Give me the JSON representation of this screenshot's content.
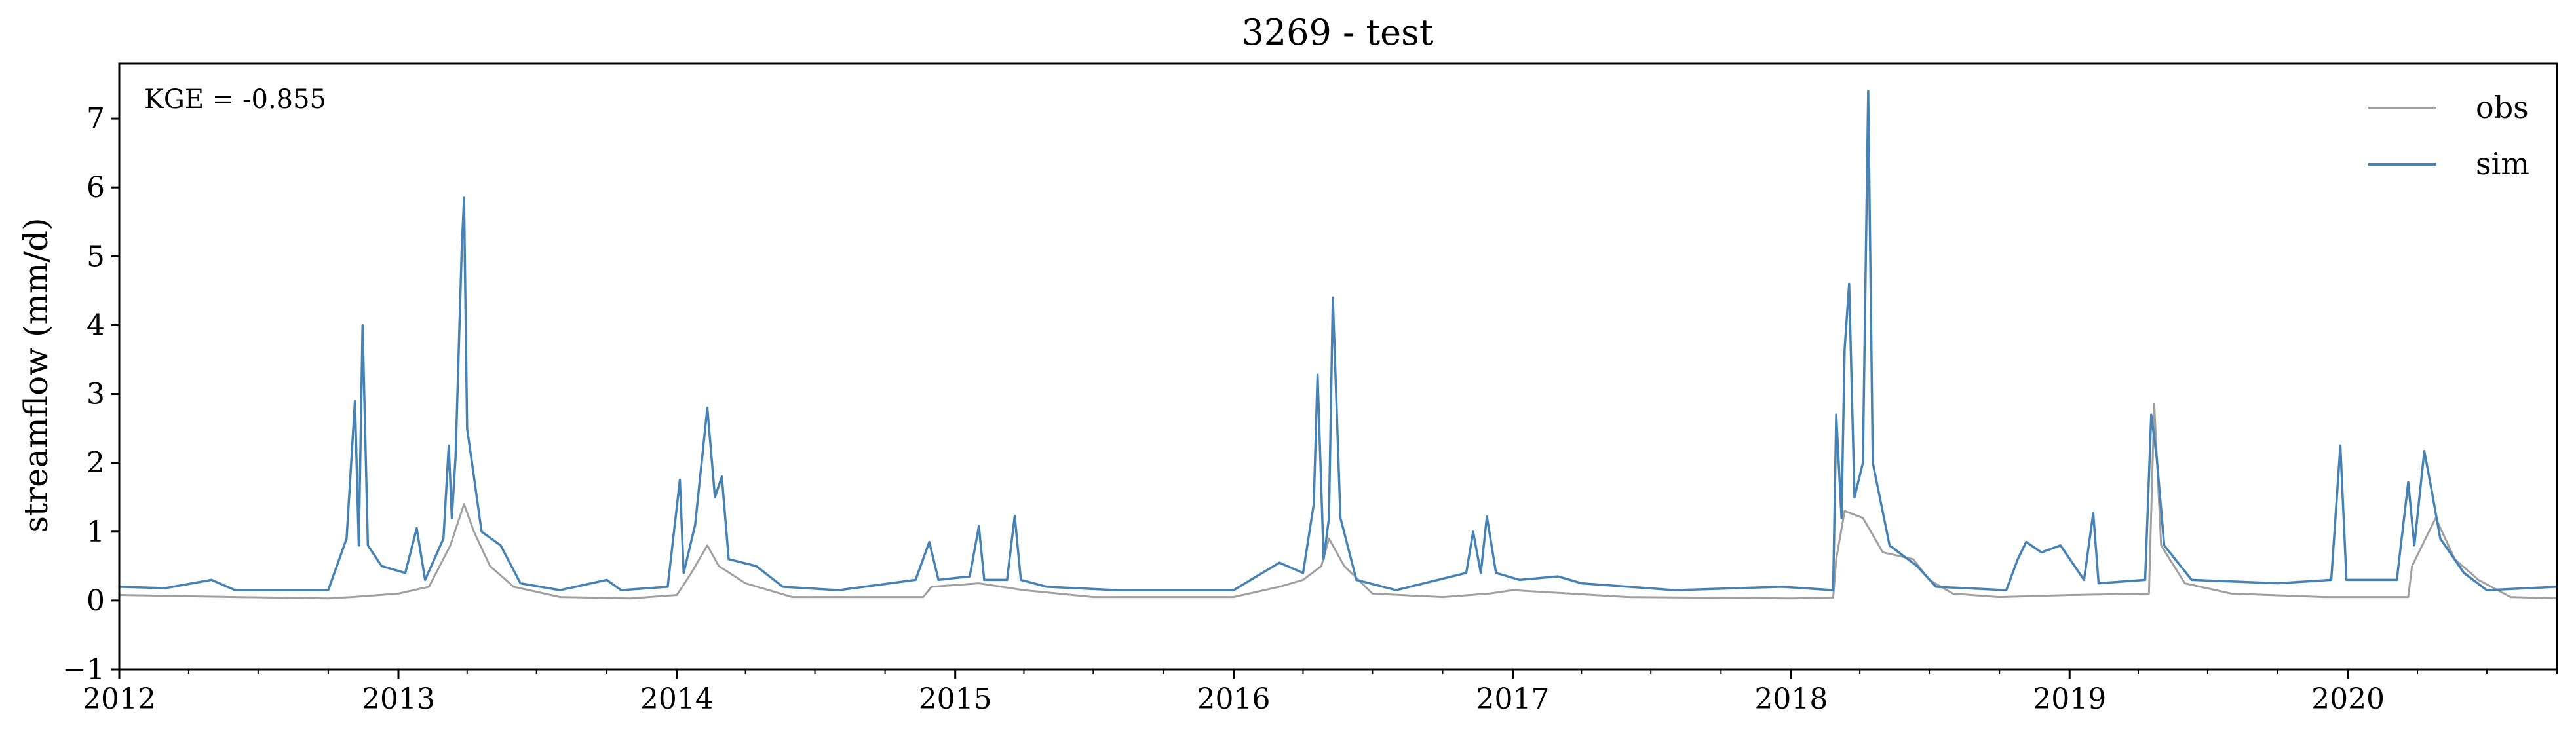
{
  "chart_data": {
    "type": "line",
    "title": "3269 - test",
    "xlabel": "",
    "ylabel": "streamflow (mm/d)",
    "annotation": "KGE = -0.855",
    "legend_position": "top-right",
    "grid": false,
    "xlim": [
      "2012-01-01",
      "2020-10-01"
    ],
    "ylim": [
      -1,
      7.8
    ],
    "y_ticks": [
      -1,
      0,
      1,
      2,
      3,
      4,
      5,
      6,
      7
    ],
    "x_ticks": [
      "2012",
      "2013",
      "2014",
      "2015",
      "2016",
      "2017",
      "2018",
      "2019",
      "2020"
    ],
    "series": [
      {
        "name": "obs",
        "color": "#a0a0a0",
        "points": [
          [
            "2012-01-01",
            0.08
          ],
          [
            "2012-06-01",
            0.05
          ],
          [
            "2012-10-01",
            0.03
          ],
          [
            "2012-11-01",
            0.05
          ],
          [
            "2013-01-01",
            0.1
          ],
          [
            "2013-02-10",
            0.2
          ],
          [
            "2013-03-10",
            0.8
          ],
          [
            "2013-03-28",
            1.4
          ],
          [
            "2013-04-10",
            1.0
          ],
          [
            "2013-05-01",
            0.5
          ],
          [
            "2013-06-01",
            0.2
          ],
          [
            "2013-08-01",
            0.05
          ],
          [
            "2013-11-01",
            0.03
          ],
          [
            "2014-01-01",
            0.08
          ],
          [
            "2014-01-20",
            0.4
          ],
          [
            "2014-02-10",
            0.8
          ],
          [
            "2014-02-25",
            0.5
          ],
          [
            "2014-04-01",
            0.25
          ],
          [
            "2014-06-01",
            0.05
          ],
          [
            "2014-11-20",
            0.05
          ],
          [
            "2014-12-01",
            0.2
          ],
          [
            "2015-02-01",
            0.25
          ],
          [
            "2015-04-01",
            0.15
          ],
          [
            "2015-07-01",
            0.05
          ],
          [
            "2016-01-01",
            0.05
          ],
          [
            "2016-03-01",
            0.2
          ],
          [
            "2016-04-01",
            0.3
          ],
          [
            "2016-04-25",
            0.5
          ],
          [
            "2016-05-05",
            0.9
          ],
          [
            "2016-05-25",
            0.5
          ],
          [
            "2016-07-01",
            0.1
          ],
          [
            "2016-10-01",
            0.05
          ],
          [
            "2016-12-01",
            0.1
          ],
          [
            "2017-01-01",
            0.15
          ],
          [
            "2017-06-01",
            0.05
          ],
          [
            "2017-12-31",
            0.03
          ],
          [
            "2018-02-25",
            0.04
          ],
          [
            "2018-03-01",
            0.6
          ],
          [
            "2018-03-12",
            1.3
          ],
          [
            "2018-04-05",
            1.2
          ],
          [
            "2018-05-01",
            0.7
          ],
          [
            "2018-06-10",
            0.6
          ],
          [
            "2018-07-01",
            0.3
          ],
          [
            "2018-08-01",
            0.1
          ],
          [
            "2018-10-01",
            0.05
          ],
          [
            "2019-01-01",
            0.08
          ],
          [
            "2019-04-15",
            0.1
          ],
          [
            "2019-04-22",
            2.85
          ],
          [
            "2019-05-01",
            0.8
          ],
          [
            "2019-06-01",
            0.25
          ],
          [
            "2019-08-01",
            0.1
          ],
          [
            "2019-12-01",
            0.05
          ],
          [
            "2020-03-20",
            0.05
          ],
          [
            "2020-03-25",
            0.5
          ],
          [
            "2020-04-25",
            1.2
          ],
          [
            "2020-05-20",
            0.6
          ],
          [
            "2020-06-20",
            0.3
          ],
          [
            "2020-08-01",
            0.05
          ],
          [
            "2020-10-01",
            0.03
          ]
        ]
      },
      {
        "name": "sim",
        "color": "#4682b4",
        "points": [
          [
            "2012-01-01",
            0.2
          ],
          [
            "2012-03-01",
            0.18
          ],
          [
            "2012-05-01",
            0.3
          ],
          [
            "2012-06-01",
            0.15
          ],
          [
            "2012-10-01",
            0.15
          ],
          [
            "2012-10-25",
            0.9
          ],
          [
            "2012-11-05",
            2.9
          ],
          [
            "2012-11-10",
            0.8
          ],
          [
            "2012-11-15",
            4.0
          ],
          [
            "2012-11-22",
            0.8
          ],
          [
            "2012-12-10",
            0.5
          ],
          [
            "2013-01-10",
            0.4
          ],
          [
            "2013-01-25",
            1.05
          ],
          [
            "2013-02-05",
            0.3
          ],
          [
            "2013-03-01",
            0.9
          ],
          [
            "2013-03-08",
            2.25
          ],
          [
            "2013-03-12",
            1.2
          ],
          [
            "2013-03-17",
            2.1
          ],
          [
            "2013-03-25",
            5.1
          ],
          [
            "2013-03-28",
            5.85
          ],
          [
            "2013-04-01",
            2.5
          ],
          [
            "2013-04-10",
            1.8
          ],
          [
            "2013-04-20",
            1.0
          ],
          [
            "2013-05-15",
            0.8
          ],
          [
            "2013-06-10",
            0.25
          ],
          [
            "2013-08-01",
            0.15
          ],
          [
            "2013-10-01",
            0.3
          ],
          [
            "2013-10-20",
            0.15
          ],
          [
            "2013-12-20",
            0.2
          ],
          [
            "2014-01-05",
            1.75
          ],
          [
            "2014-01-10",
            0.4
          ],
          [
            "2014-01-25",
            1.1
          ],
          [
            "2014-02-10",
            2.8
          ],
          [
            "2014-02-20",
            1.5
          ],
          [
            "2014-03-01",
            1.8
          ],
          [
            "2014-03-10",
            0.6
          ],
          [
            "2014-04-15",
            0.5
          ],
          [
            "2014-05-20",
            0.2
          ],
          [
            "2014-08-01",
            0.15
          ],
          [
            "2014-11-10",
            0.3
          ],
          [
            "2014-11-28",
            0.85
          ],
          [
            "2014-12-10",
            0.3
          ],
          [
            "2015-01-20",
            0.35
          ],
          [
            "2015-02-01",
            1.08
          ],
          [
            "2015-02-08",
            0.3
          ],
          [
            "2015-03-10",
            0.3
          ],
          [
            "2015-03-20",
            1.23
          ],
          [
            "2015-03-28",
            0.3
          ],
          [
            "2015-05-01",
            0.2
          ],
          [
            "2015-08-01",
            0.15
          ],
          [
            "2016-01-01",
            0.15
          ],
          [
            "2016-03-01",
            0.55
          ],
          [
            "2016-04-01",
            0.4
          ],
          [
            "2016-04-15",
            1.4
          ],
          [
            "2016-04-20",
            3.28
          ],
          [
            "2016-04-28",
            0.6
          ],
          [
            "2016-05-05",
            1.2
          ],
          [
            "2016-05-10",
            4.4
          ],
          [
            "2016-05-20",
            1.2
          ],
          [
            "2016-06-10",
            0.3
          ],
          [
            "2016-08-01",
            0.15
          ],
          [
            "2016-11-01",
            0.4
          ],
          [
            "2016-11-10",
            1.0
          ],
          [
            "2016-11-20",
            0.4
          ],
          [
            "2016-11-28",
            1.22
          ],
          [
            "2016-12-10",
            0.4
          ],
          [
            "2017-01-10",
            0.3
          ],
          [
            "2017-03-01",
            0.35
          ],
          [
            "2017-04-01",
            0.25
          ],
          [
            "2017-08-01",
            0.15
          ],
          [
            "2017-12-20",
            0.2
          ],
          [
            "2018-02-25",
            0.15
          ],
          [
            "2018-03-01",
            2.7
          ],
          [
            "2018-03-08",
            1.2
          ],
          [
            "2018-03-12",
            3.65
          ],
          [
            "2018-03-18",
            4.6
          ],
          [
            "2018-03-25",
            1.5
          ],
          [
            "2018-04-05",
            2.0
          ],
          [
            "2018-04-12",
            7.4
          ],
          [
            "2018-04-18",
            2.0
          ],
          [
            "2018-05-10",
            0.8
          ],
          [
            "2018-06-15",
            0.5
          ],
          [
            "2018-07-10",
            0.2
          ],
          [
            "2018-10-10",
            0.15
          ],
          [
            "2018-10-25",
            0.6
          ],
          [
            "2018-11-05",
            0.85
          ],
          [
            "2018-11-25",
            0.7
          ],
          [
            "2018-12-20",
            0.8
          ],
          [
            "2019-01-20",
            0.3
          ],
          [
            "2019-02-01",
            1.27
          ],
          [
            "2019-02-08",
            0.25
          ],
          [
            "2019-04-10",
            0.3
          ],
          [
            "2019-04-18",
            2.7
          ],
          [
            "2019-04-25",
            2.1
          ],
          [
            "2019-05-05",
            0.8
          ],
          [
            "2019-06-10",
            0.3
          ],
          [
            "2019-10-01",
            0.25
          ],
          [
            "2019-12-10",
            0.3
          ],
          [
            "2019-12-22",
            2.25
          ],
          [
            "2019-12-30",
            0.3
          ],
          [
            "2020-03-05",
            0.3
          ],
          [
            "2020-03-20",
            1.72
          ],
          [
            "2020-03-28",
            0.8
          ],
          [
            "2020-04-10",
            2.17
          ],
          [
            "2020-04-18",
            1.7
          ],
          [
            "2020-05-01",
            0.9
          ],
          [
            "2020-06-01",
            0.4
          ],
          [
            "2020-07-01",
            0.15
          ],
          [
            "2020-10-01",
            0.2
          ]
        ]
      }
    ]
  }
}
